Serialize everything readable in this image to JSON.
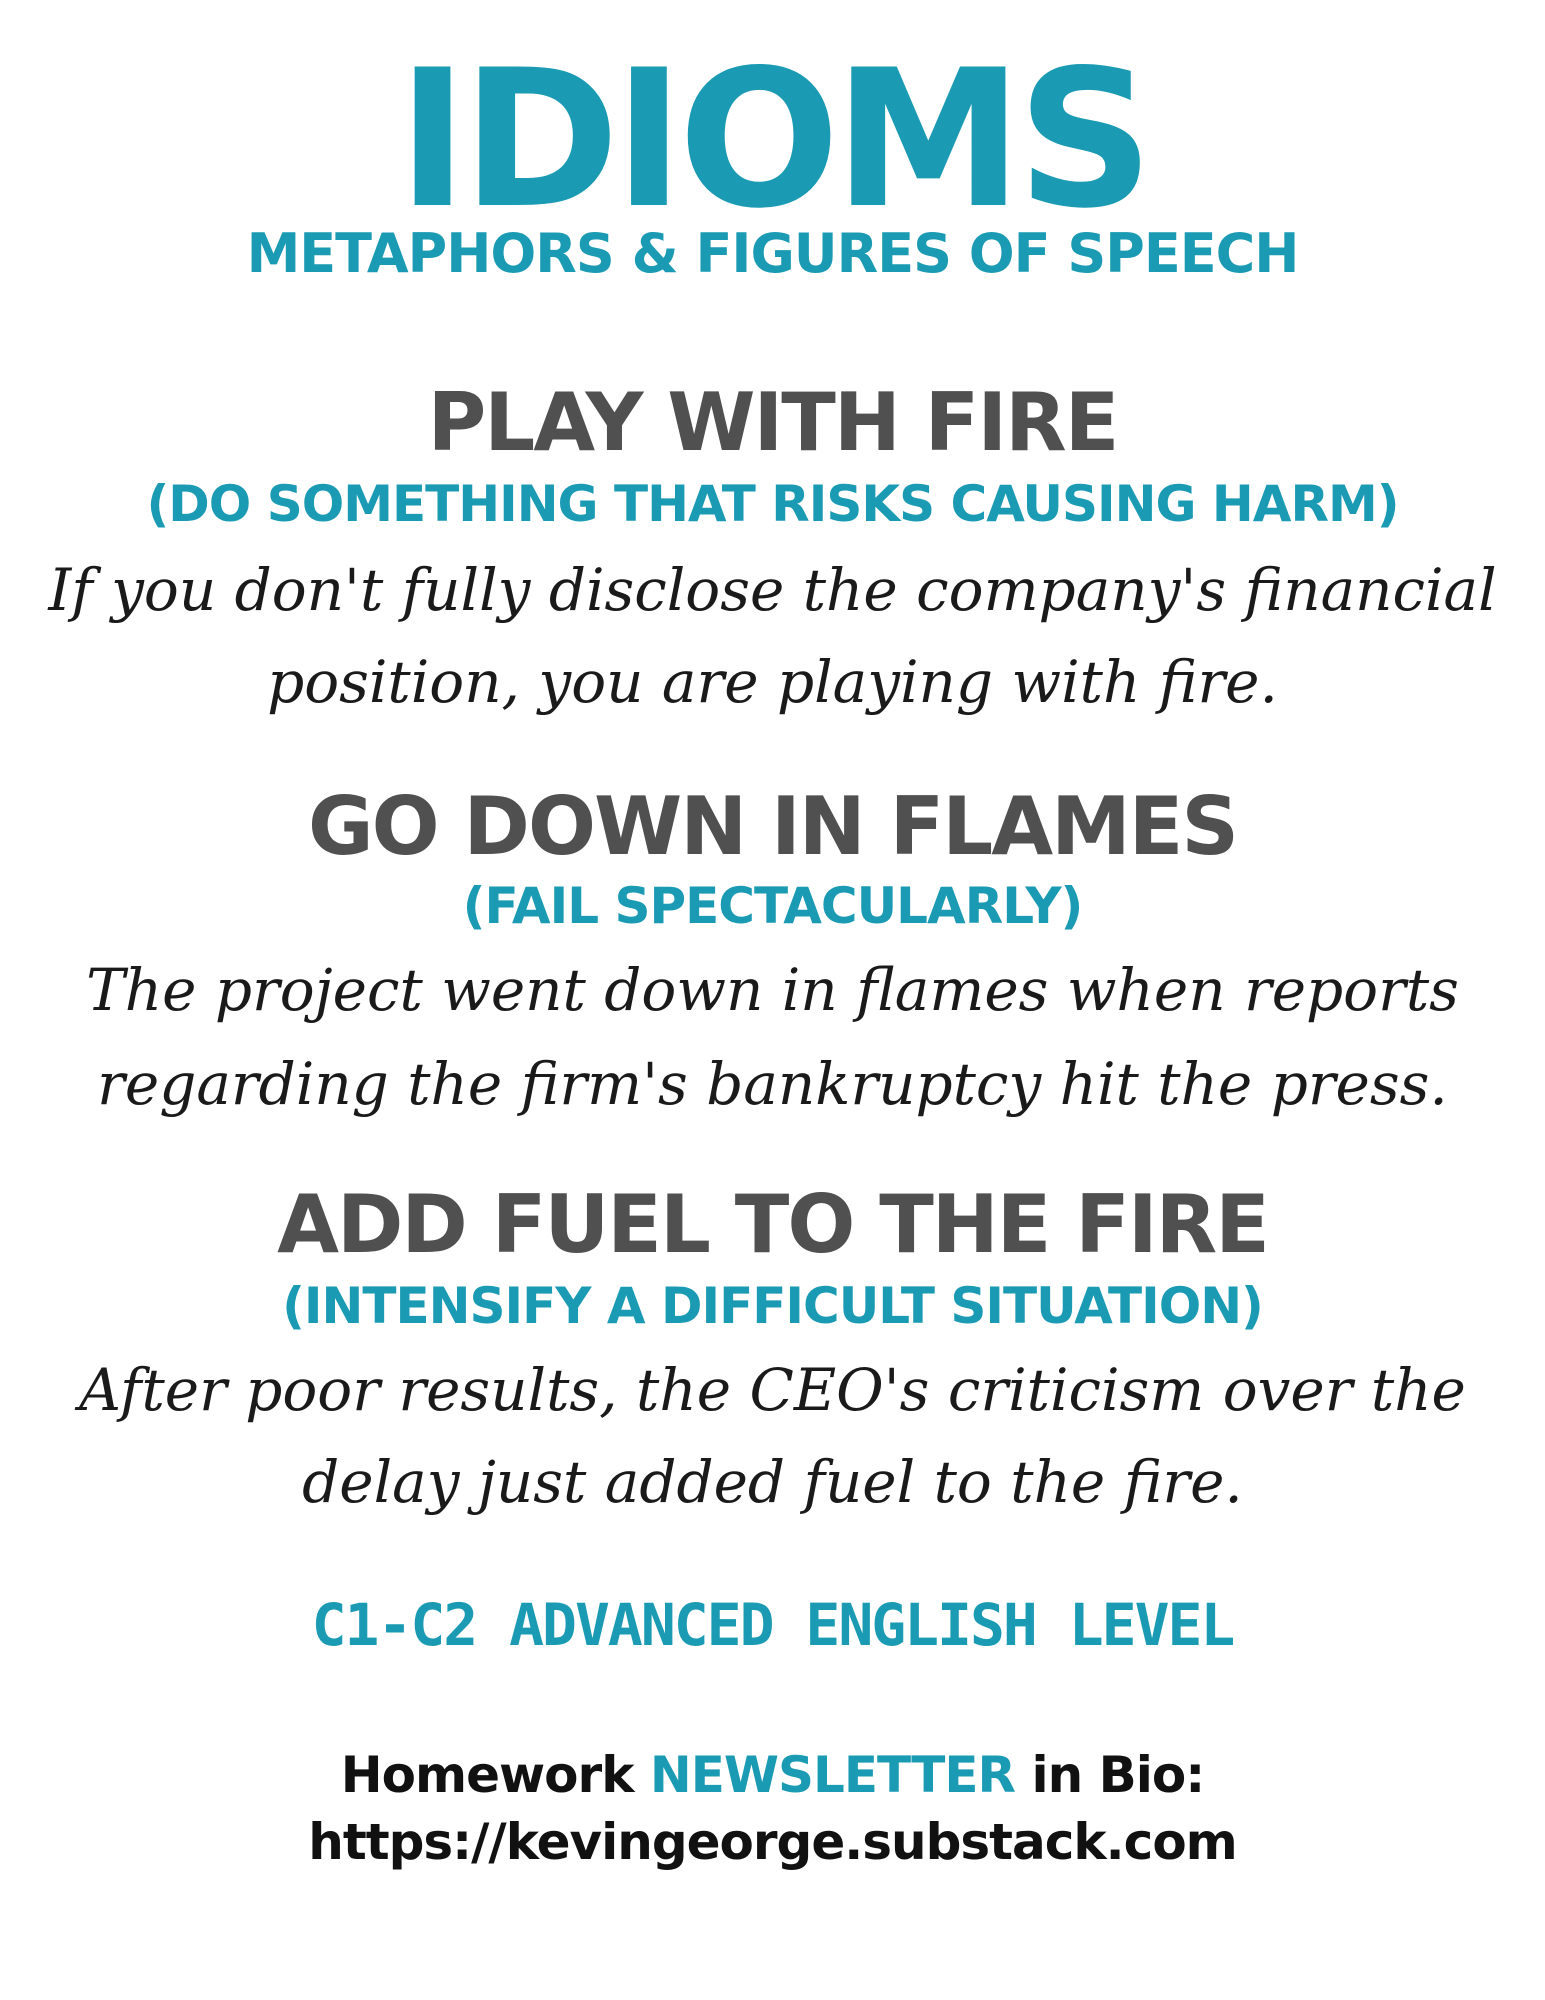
{
  "header": {
    "title": "IDIOMS",
    "subtitle": "METAPHORS & FIGURES OF SPEECH"
  },
  "idioms": [
    {
      "phrase": "PLAY WITH FIRE",
      "meaning": "(DO SOMETHING THAT RISKS CAUSING HARM)",
      "example_lines": [
        "If you don't fully disclose the company's financial",
        "position, you are playing with fire."
      ]
    },
    {
      "phrase": "GO DOWN IN FLAMES",
      "meaning": "(FAIL SPECTACULARLY)",
      "example_lines": [
        "The project went down in flames when reports",
        "regarding the firm's bankruptcy hit the press."
      ]
    },
    {
      "phrase": "ADD FUEL TO THE FIRE",
      "meaning": "(INTENSIFY A DIFFICULT SITUATION)",
      "example_lines": [
        "After poor results, the CEO's criticism over the",
        "delay just added fuel to the fire."
      ]
    }
  ],
  "level": "C1-C2 ADVANCED ENGLISH LEVEL",
  "footer": {
    "prefix": "Homework ",
    "highlight": "NEWSLETTER",
    "suffix": " in Bio:",
    "url": "https://kevingeorge.substack.com"
  },
  "colors": {
    "accent": "#1a9bb3",
    "heading": "#505050",
    "text": "#1a1a1a"
  }
}
